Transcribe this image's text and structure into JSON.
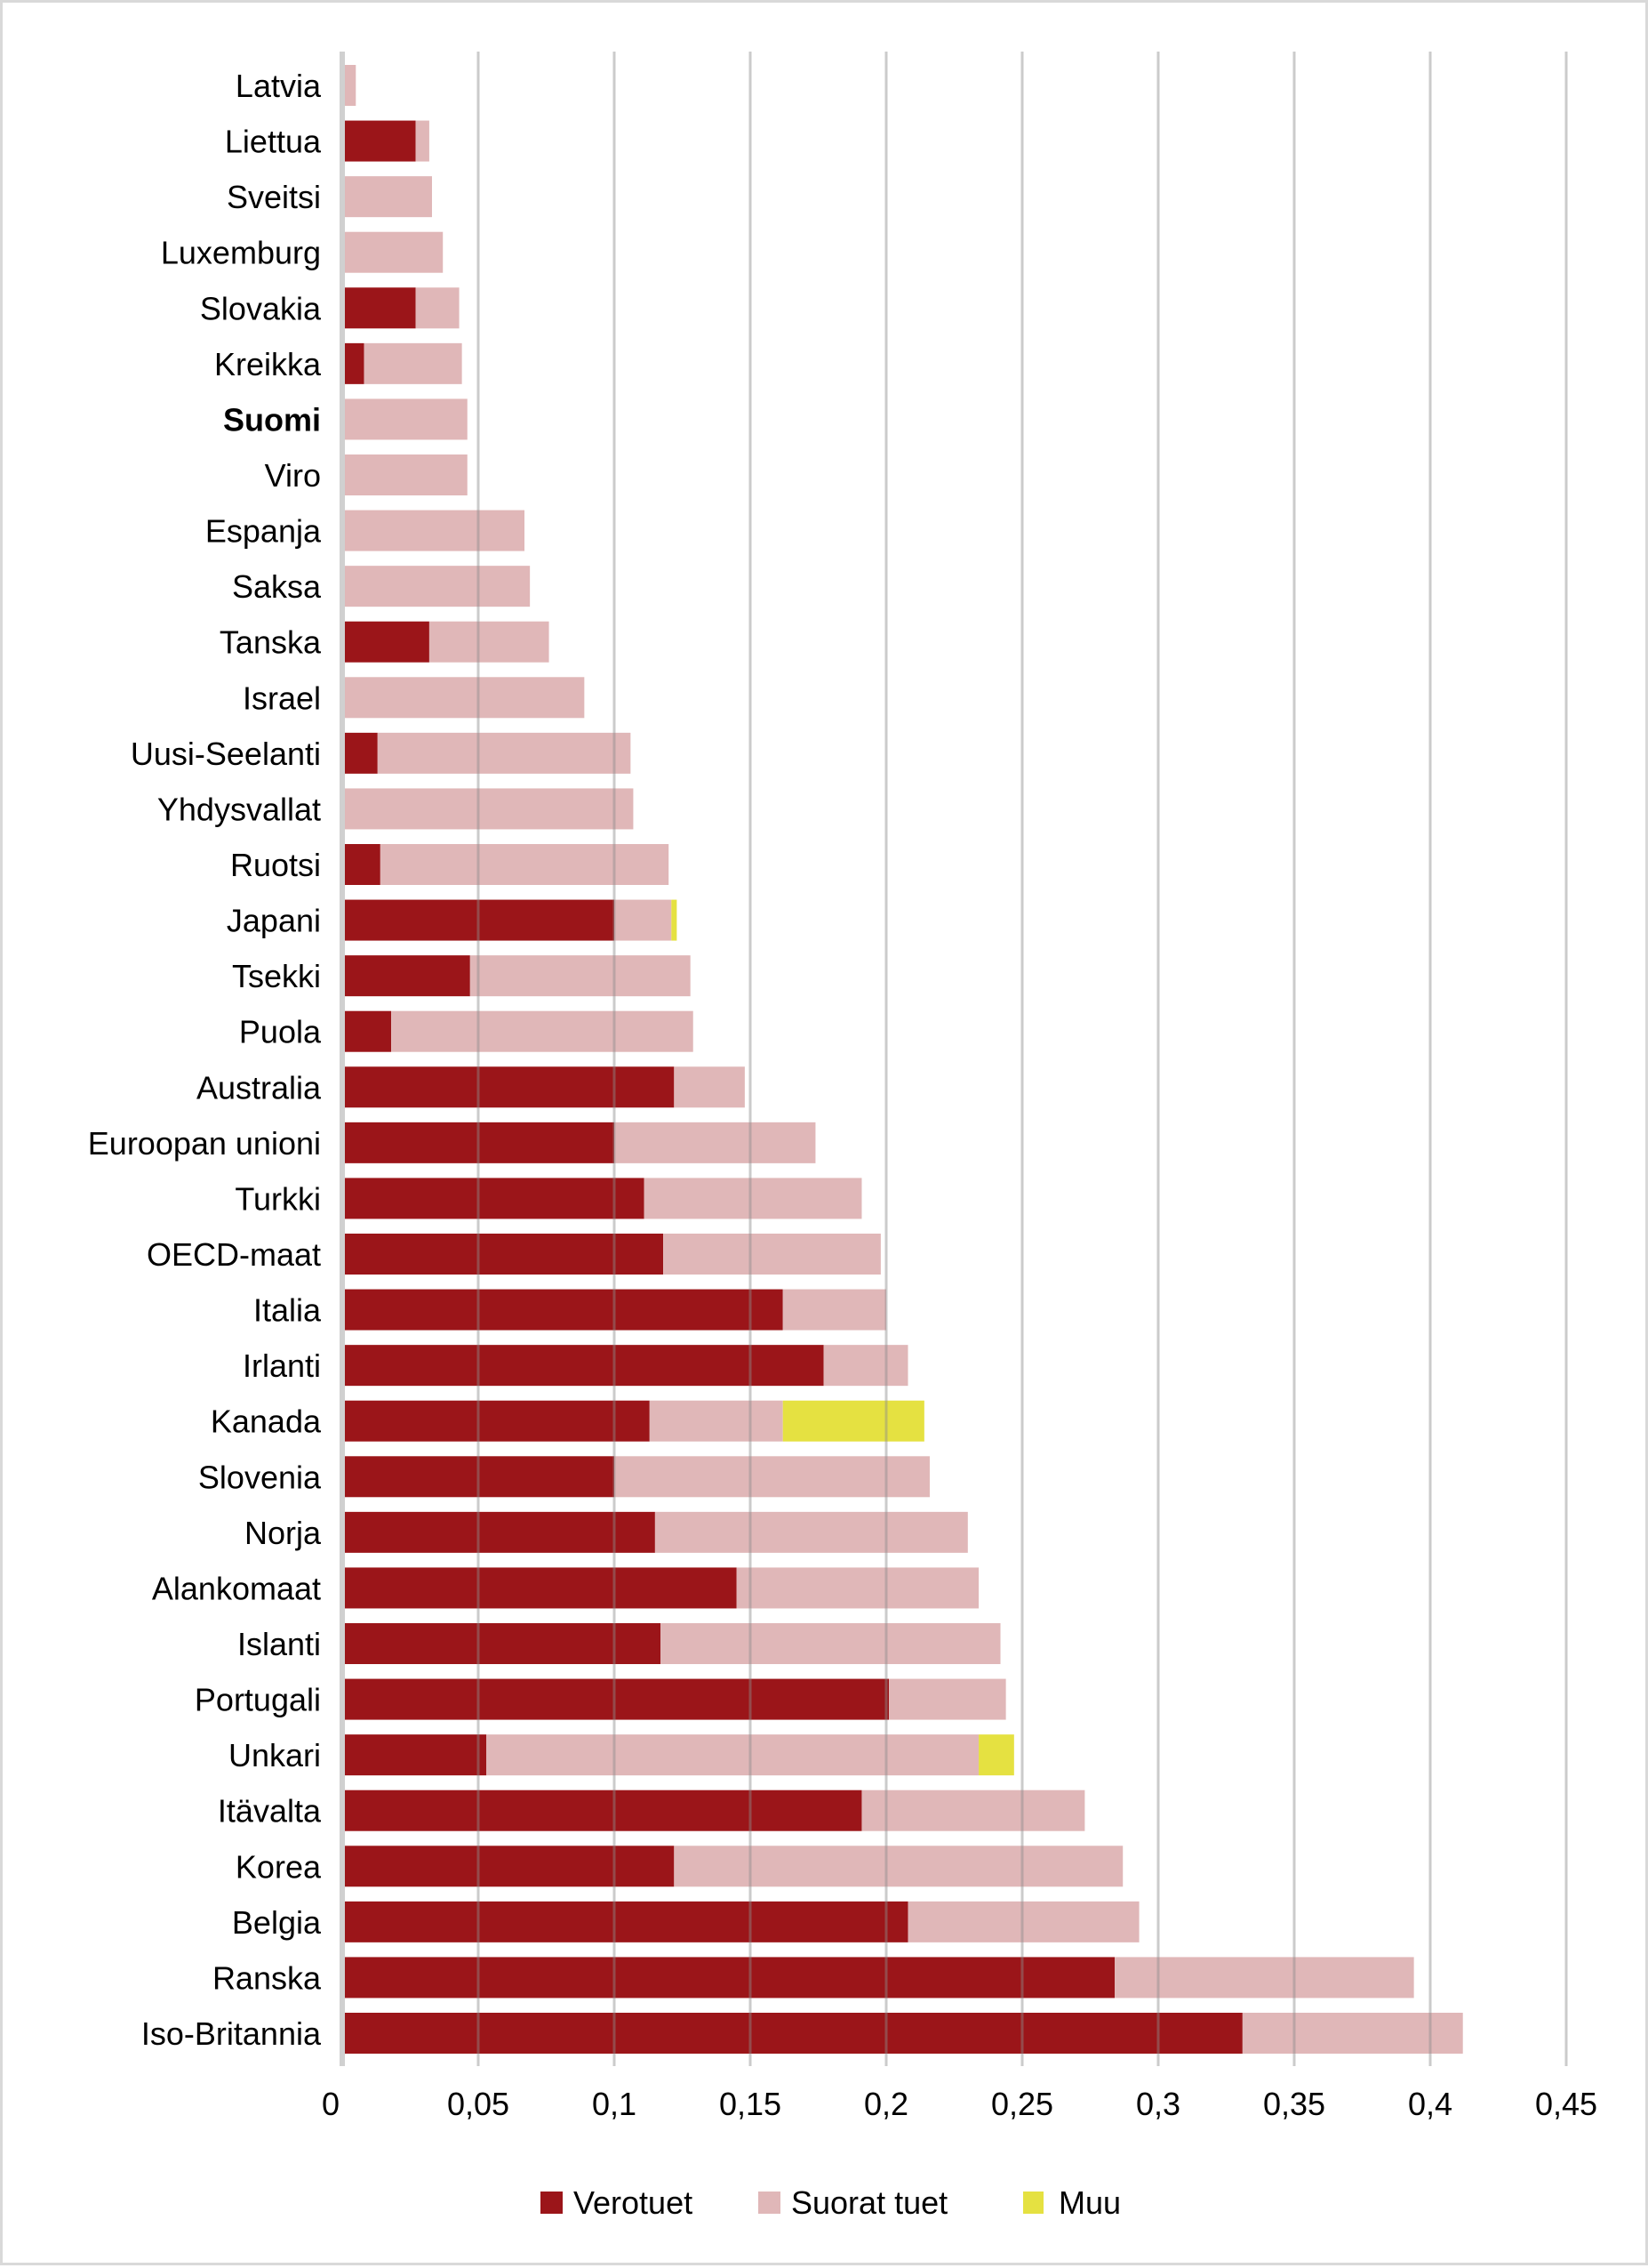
{
  "chart_data": {
    "type": "bar",
    "orientation": "horizontal",
    "stacked": true,
    "title": "",
    "xlabel": "",
    "ylabel": "",
    "xlim": [
      0,
      0.45
    ],
    "x_ticks": [
      "0",
      "0,05",
      "0,1",
      "0,15",
      "0,2",
      "0,25",
      "0,3",
      "0,35",
      "0,4",
      "0,45"
    ],
    "x_tick_values": [
      0,
      0.05,
      0.1,
      0.15,
      0.2,
      0.25,
      0.3,
      0.35,
      0.4,
      0.45
    ],
    "grid": "vertical",
    "legend_position": "bottom",
    "highlighted_category": "Suomi",
    "categories": [
      "Latvia",
      "Liettua",
      "Sveitsi",
      "Luxemburg",
      "Slovakia",
      "Kreikka",
      "Suomi",
      "Viro",
      "Espanja",
      "Saksa",
      "Tanska",
      "Israel",
      "Uusi-Seelanti",
      "Yhdysvallat",
      "Ruotsi",
      "Japani",
      "Tsekki",
      "Puola",
      "Australia",
      "Euroopan unioni",
      "Turkki",
      "OECD-maat",
      "Italia",
      "Irlanti",
      "Kanada",
      "Slovenia",
      "Norja",
      "Alankomaat",
      "Islanti",
      "Portugali",
      "Unkari",
      "Itävalta",
      "Korea",
      "Belgia",
      "Ranska",
      "Iso-Britannia"
    ],
    "series": [
      {
        "name": "Verotuet",
        "color": "#9b1519",
        "values": [
          0,
          0.027,
          0,
          0,
          0.027,
          0.008,
          0,
          0,
          0,
          0,
          0.032,
          0,
          0.013,
          0,
          0.014,
          0.1,
          0.047,
          0.018,
          0.122,
          0.1,
          0.111,
          0.118,
          0.162,
          0.177,
          0.113,
          0.1,
          0.115,
          0.145,
          0.117,
          0.201,
          0.053,
          0.191,
          0.122,
          0.208,
          0.284,
          0.331
        ]
      },
      {
        "name": "Suorat tuet",
        "color": "#e0b7b8",
        "values": [
          0.005,
          0.005,
          0.033,
          0.037,
          0.016,
          0.036,
          0.046,
          0.046,
          0.067,
          0.069,
          0.044,
          0.089,
          0.093,
          0.107,
          0.106,
          0.021,
          0.081,
          0.111,
          0.026,
          0.074,
          0.08,
          0.08,
          0.038,
          0.031,
          0.049,
          0.116,
          0.115,
          0.089,
          0.125,
          0.043,
          0.181,
          0.082,
          0.165,
          0.085,
          0.11,
          0.081
        ]
      },
      {
        "name": "Muu",
        "color": "#e5e141",
        "values": [
          0,
          0,
          0,
          0,
          0,
          0,
          0,
          0,
          0,
          0,
          0,
          0,
          0,
          0,
          0,
          0.002,
          0,
          0,
          0,
          0,
          0,
          0,
          0,
          0,
          0.052,
          0,
          0,
          0,
          0,
          0,
          0.013,
          0,
          0,
          0,
          0,
          0
        ]
      }
    ]
  }
}
